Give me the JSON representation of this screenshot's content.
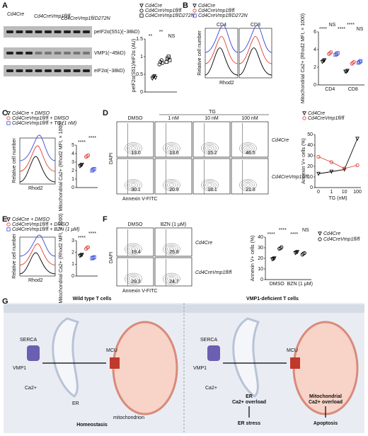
{
  "panels": {
    "A": {
      "label": "A",
      "lanes": [
        "Cd4Cre",
        "Cd4CreVmp1fl/fl",
        "Cd4CreVmp1fl/D272N"
      ],
      "bands": [
        "peIF2α(S51)(~38kD)",
        "VMP1(~45kD)",
        "eIF2α(~38kD)"
      ],
      "plot": {
        "ylabel": "peIF2α(S51)/eIF2α (AU)",
        "ylim": [
          0,
          1.5
        ],
        "yticks": [
          0,
          0.5,
          1,
          1.5
        ],
        "sig": [
          "**",
          "**",
          "NS"
        ],
        "series": [
          {
            "name": "Cd4Cre",
            "color": "#000000",
            "values": [
              [
                0.38,
                0.42,
                0.45,
                0.4
              ]
            ]
          },
          {
            "name": "Cd4CreVmp1fl/fl",
            "color": "#000000",
            "values": [
              [
                0.78,
                0.85,
                0.9,
                0.82
              ]
            ]
          },
          {
            "name": "Cd4CreVmp1fl/D272N",
            "color": "#000000",
            "values": [
              [
                0.85,
                0.95,
                1.0,
                0.9
              ]
            ]
          }
        ]
      }
    },
    "B": {
      "label": "B",
      "hist": [
        "CD4",
        "CD8"
      ],
      "ylabel": "Relative cell number",
      "xlabel": "Rhod2",
      "plot": {
        "ylabel": "Mitochondrial Ca2+ (Rhod2 MFI, × 1000)",
        "ylim": [
          0,
          6
        ],
        "yticks": [
          0,
          2,
          4,
          6
        ],
        "categories": [
          "CD4",
          "CD8"
        ],
        "sig": [
          "****",
          "NS",
          "****",
          "****",
          "NS"
        ],
        "series": [
          {
            "name": "Cd4Cre",
            "color": "#000000",
            "values": [
              [
                2.6,
                2.7,
                2.8
              ],
              [
                1.5,
                1.5,
                1.6
              ]
            ]
          },
          {
            "name": "Cd4CreVmp1fl/fl",
            "color": "#e03c31",
            "values": [
              [
                3.5,
                3.6,
                3.7
              ],
              [
                2.4,
                2.5,
                2.6
              ]
            ]
          },
          {
            "name": "Cd4CreVmp1fl/D272N",
            "color": "#3b4bd8",
            "values": [
              [
                3.4,
                3.5,
                3.6
              ],
              [
                2.5,
                2.6,
                2.7
              ]
            ]
          }
        ]
      }
    },
    "C": {
      "label": "C",
      "ylabel": "Relative cell number",
      "xlabel": "Rhod2",
      "plot": {
        "ylabel": "Mitochondrial Ca2+ (Rhod2 MFI, × 1000)",
        "ylim": [
          0,
          5
        ],
        "yticks": [
          0,
          1,
          2,
          3,
          4,
          5
        ],
        "sig": [
          "****",
          "****"
        ],
        "series": [
          {
            "name": "Cd4Cre + DMSO",
            "color": "#000000",
            "values": [
              [
                2.5,
                2.6,
                2.7
              ]
            ]
          },
          {
            "name": "Cd4CreVmp1fl/fl + DMSO",
            "color": "#e03c31",
            "values": [
              [
                3.6,
                3.7,
                3.8
              ]
            ]
          },
          {
            "name": "Cd4CreVmp1fl/fl + TG (1 nM)",
            "color": "#3b4bd8",
            "values": [
              [
                2.0,
                2.1,
                2.2
              ]
            ]
          }
        ]
      }
    },
    "D": {
      "label": "D",
      "group": "TG",
      "cols": [
        "DMSO",
        "1 nM",
        "10 nM",
        "100 nM"
      ],
      "rows": [
        "Cd4Cre",
        "Cd4CreVmp1fl/fl"
      ],
      "cells": [
        [
          "13.0",
          "13.6",
          "15.2",
          "46.5"
        ],
        [
          "30.1",
          "20.9",
          "18.1",
          "21.8"
        ]
      ],
      "ylabel": "DAPI",
      "xlabel": "Annexin V-FITC",
      "chart": {
        "ylabel": "Annexin V+ cells (%)",
        "xlabel": "TG (nM)",
        "categories": [
          "0",
          "1",
          "10",
          "100"
        ],
        "ylim": [
          0,
          50
        ],
        "yticks": [
          0,
          10,
          20,
          30,
          40,
          50
        ],
        "series": [
          {
            "name": "Cd4Cre",
            "color": "#000000",
            "values": [
              13,
              15,
              17,
              46
            ]
          },
          {
            "name": "Cd4CreVmp1fl/fl",
            "color": "#e03c31",
            "values": [
              29,
              24,
              18,
              21
            ]
          }
        ]
      }
    },
    "E": {
      "label": "E",
      "ylabel": "Relative cell number",
      "xlabel": "Rhod2",
      "plot": {
        "ylabel": "Mitochondrial Ca2+ (Rhod2 MFI, × 1000)",
        "ylim": [
          0,
          3
        ],
        "yticks": [
          0,
          1,
          2,
          3
        ],
        "sig": [
          "****",
          "****"
        ],
        "series": [
          {
            "name": "Cd4Cre + DMSO",
            "color": "#000000",
            "values": [
              [
                1.7,
                1.75,
                1.8
              ]
            ]
          },
          {
            "name": "Cd4CreVmp1fl/fl + DMSO",
            "color": "#e03c31",
            "values": [
              [
                2.3,
                2.4,
                2.45
              ]
            ]
          },
          {
            "name": "Cd4CreVmp1fl/fl + BZN (1 μM)",
            "color": "#3b4bd8",
            "values": [
              [
                1.5,
                1.55,
                1.6
              ]
            ]
          }
        ]
      }
    },
    "F": {
      "label": "F",
      "cols": [
        "DMSO",
        "BZN (1 μM)"
      ],
      "rows": [
        "Cd4Cre",
        "Cd4CreVmp1fl/fl"
      ],
      "cells": [
        [
          "19.4",
          "25.8"
        ],
        [
          "29.3",
          "24.7"
        ]
      ],
      "ylabel": "DAPI",
      "xlabel": "Annexin V-FITC",
      "plot": {
        "ylabel": "Annexin V+ cells (%)",
        "ylim": [
          0,
          40
        ],
        "yticks": [
          0,
          10,
          20,
          30,
          40
        ],
        "categories": [
          "DMSO",
          "BZN (1 μM)"
        ],
        "sig": [
          "****",
          "****",
          "****",
          "NS"
        ],
        "series": [
          {
            "name": "Cd4Cre",
            "color": "#000000",
            "values": [
              [
                19,
                19.5,
                20
              ],
              [
                25,
                25.5,
                26
              ]
            ]
          },
          {
            "name": "Cd4CreVmp1fl/fl",
            "color": "#000000",
            "values": [
              [
                29,
                29.5,
                30.5
              ],
              [
                23.5,
                24.5,
                25
              ]
            ]
          }
        ]
      }
    },
    "G": {
      "label": "G",
      "left": {
        "title": "Wild type T cells",
        "serca": "SERCA",
        "vmp1": "VMP1",
        "mcu": "MCU",
        "ca": "Ca2+",
        "er": "ER",
        "mito": "mitochondrion",
        "outcome": "Homeostasis"
      },
      "right": {
        "title": "VMP1-deficient T cells",
        "serca": "SERCA",
        "vmp1": "VMP1",
        "mcu": "MCU",
        "ca": "Ca2+",
        "er1": "ER",
        "er2": "Ca2+ overload",
        "er3": "ER stress",
        "m1": "Mitochondrial",
        "m2": "Ca2+ overload",
        "m3": "Apoptosis"
      }
    }
  }
}
